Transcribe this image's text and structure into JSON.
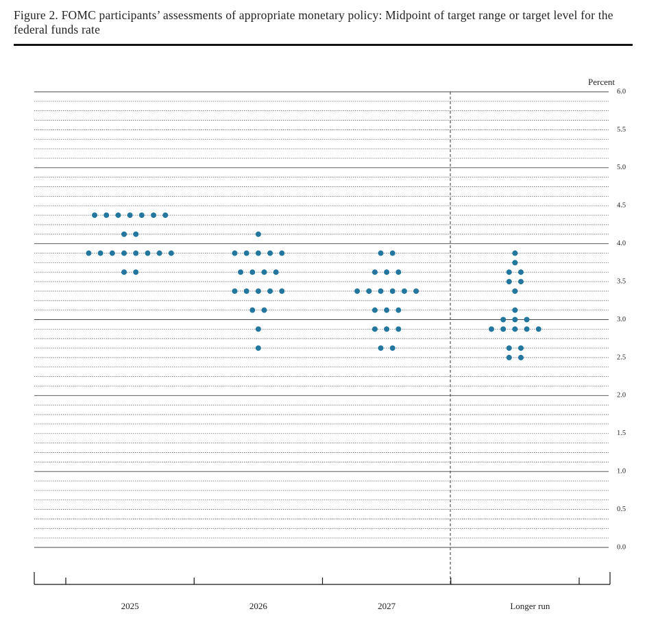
{
  "chart_data": {
    "type": "dot",
    "title": "Figure 2.  FOMC participants’ assessments of appropriate monetary policy:  Midpoint of target range or target level for the federal funds rate",
    "y_label": "Percent",
    "categories": [
      "2025",
      "2026",
      "2027",
      "Longer run"
    ],
    "color": "#23779f",
    "dots": [
      [
        4.375,
        4.375,
        4.375,
        4.375,
        4.375,
        4.375,
        4.375,
        4.125,
        4.125,
        3.875,
        3.875,
        3.875,
        3.875,
        3.875,
        3.875,
        3.875,
        3.875,
        3.625,
        3.625
      ],
      [
        4.125,
        3.875,
        3.875,
        3.875,
        3.875,
        3.875,
        3.625,
        3.625,
        3.625,
        3.625,
        3.375,
        3.375,
        3.375,
        3.375,
        3.375,
        3.125,
        3.125,
        2.875,
        2.625
      ],
      [
        3.875,
        3.875,
        3.625,
        3.625,
        3.625,
        3.375,
        3.375,
        3.375,
        3.375,
        3.375,
        3.375,
        3.125,
        3.125,
        3.125,
        2.875,
        2.875,
        2.875,
        2.625,
        2.625
      ],
      [
        3.875,
        3.75,
        3.625,
        3.625,
        3.5,
        3.5,
        3.375,
        3.125,
        3.0,
        3.0,
        3.0,
        2.875,
        2.875,
        2.875,
        2.875,
        2.875,
        2.625,
        2.625,
        2.5,
        2.5
      ]
    ],
    "ylim": [
      0,
      6
    ],
    "yticks": [
      {
        "value": 0,
        "label": "0.0"
      },
      0.5,
      {
        "value": 1,
        "label": "1.0"
      },
      1.5,
      {
        "value": 2,
        "label": "2.0"
      },
      2.5,
      {
        "value": 3,
        "label": "3.0"
      },
      3.5,
      {
        "value": 4,
        "label": "4.0"
      },
      4.5,
      {
        "value": 5,
        "label": "5.0"
      },
      5.5,
      {
        "value": 6,
        "label": "6.0"
      }
    ],
    "grid": true
  }
}
